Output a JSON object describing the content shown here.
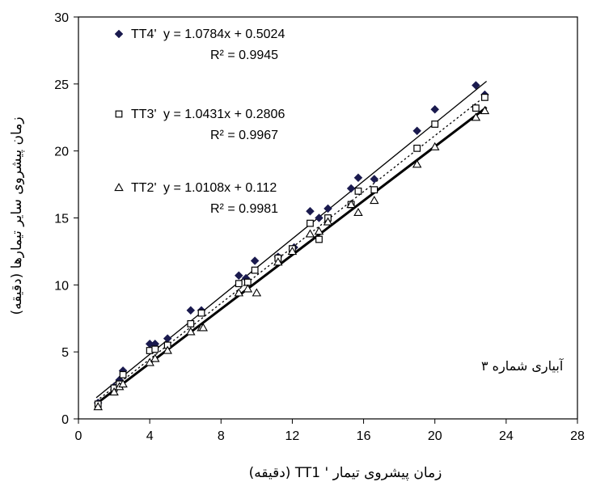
{
  "chart_data": {
    "type": "scatter",
    "xlabel": "زمان پیشروی تیمار ' TT1 (دقیقه)",
    "ylabel": "زمان پیشروی سایر تیمارها (دقیقه)",
    "xlim": [
      0,
      28
    ],
    "ylim": [
      0,
      30
    ],
    "xticks": [
      0,
      4,
      8,
      12,
      16,
      20,
      24,
      28
    ],
    "yticks": [
      0,
      5,
      10,
      15,
      20,
      25,
      30
    ],
    "grid": false,
    "legend_position": "top-left",
    "annotation": "آبیاری شماره ۳",
    "series": [
      {
        "name": "TT4'",
        "marker": "diamond",
        "color": "#1a1a4e",
        "trendline_style": "solid-thin",
        "equation": "y = 1.0784x + 0.5024",
        "r2": "R² = 0.9945",
        "slope": 1.0784,
        "intercept": 0.5024,
        "x": [
          1.1,
          2.0,
          2.3,
          2.5,
          4.0,
          4.3,
          5.0,
          6.3,
          6.9,
          9.0,
          9.4,
          9.9,
          11.2,
          12.1,
          13.0,
          13.5,
          14.0,
          15.3,
          15.7,
          16.6,
          19.0,
          20.0,
          22.3,
          22.8
        ],
        "y": [
          1.2,
          2.4,
          2.9,
          3.6,
          5.6,
          5.6,
          6.0,
          8.1,
          8.1,
          10.7,
          10.5,
          11.8,
          12.1,
          12.8,
          15.5,
          15.0,
          15.7,
          17.2,
          18.0,
          17.9,
          21.5,
          23.1,
          24.9,
          24.2
        ]
      },
      {
        "name": "TT3'",
        "marker": "square",
        "color": "#000000",
        "trendline_style": "dotted",
        "equation": "y = 1.0431x + 0.2806",
        "r2": "R² = 0.9967",
        "slope": 1.0431,
        "intercept": 0.2806,
        "x": [
          1.1,
          2.0,
          2.3,
          2.5,
          4.0,
          4.3,
          5.0,
          6.3,
          6.9,
          9.0,
          9.5,
          9.9,
          11.2,
          12.0,
          13.0,
          13.5,
          14.0,
          15.3,
          15.7,
          16.6,
          19.0,
          20.0,
          22.3,
          22.8
        ],
        "y": [
          1.1,
          2.3,
          2.6,
          3.3,
          5.1,
          5.2,
          5.5,
          7.1,
          7.9,
          10.1,
          10.2,
          11.1,
          12.0,
          12.7,
          14.6,
          13.4,
          15.0,
          16.0,
          17.0,
          17.1,
          20.2,
          22.0,
          23.2,
          24.0
        ]
      },
      {
        "name": "TT2'",
        "marker": "triangle",
        "color": "#000000",
        "trendline_style": "solid-thick",
        "equation": "y = 1.0108x + 0.112",
        "r2": "R² = 0.9981",
        "slope": 1.0108,
        "intercept": 0.112,
        "x": [
          1.1,
          2.0,
          2.3,
          2.5,
          4.0,
          4.3,
          5.0,
          6.3,
          6.9,
          7.0,
          9.0,
          9.5,
          10.0,
          11.2,
          12.0,
          13.0,
          13.5,
          14.0,
          15.3,
          15.7,
          16.6,
          19.0,
          20.0,
          22.3,
          22.8
        ],
        "y": [
          0.9,
          2.0,
          2.4,
          2.6,
          4.2,
          4.5,
          5.1,
          6.5,
          6.8,
          6.8,
          9.4,
          9.7,
          9.4,
          11.7,
          12.5,
          13.8,
          14.0,
          14.7,
          16.0,
          15.4,
          16.3,
          19.0,
          20.3,
          22.5,
          23.0
        ]
      }
    ]
  }
}
